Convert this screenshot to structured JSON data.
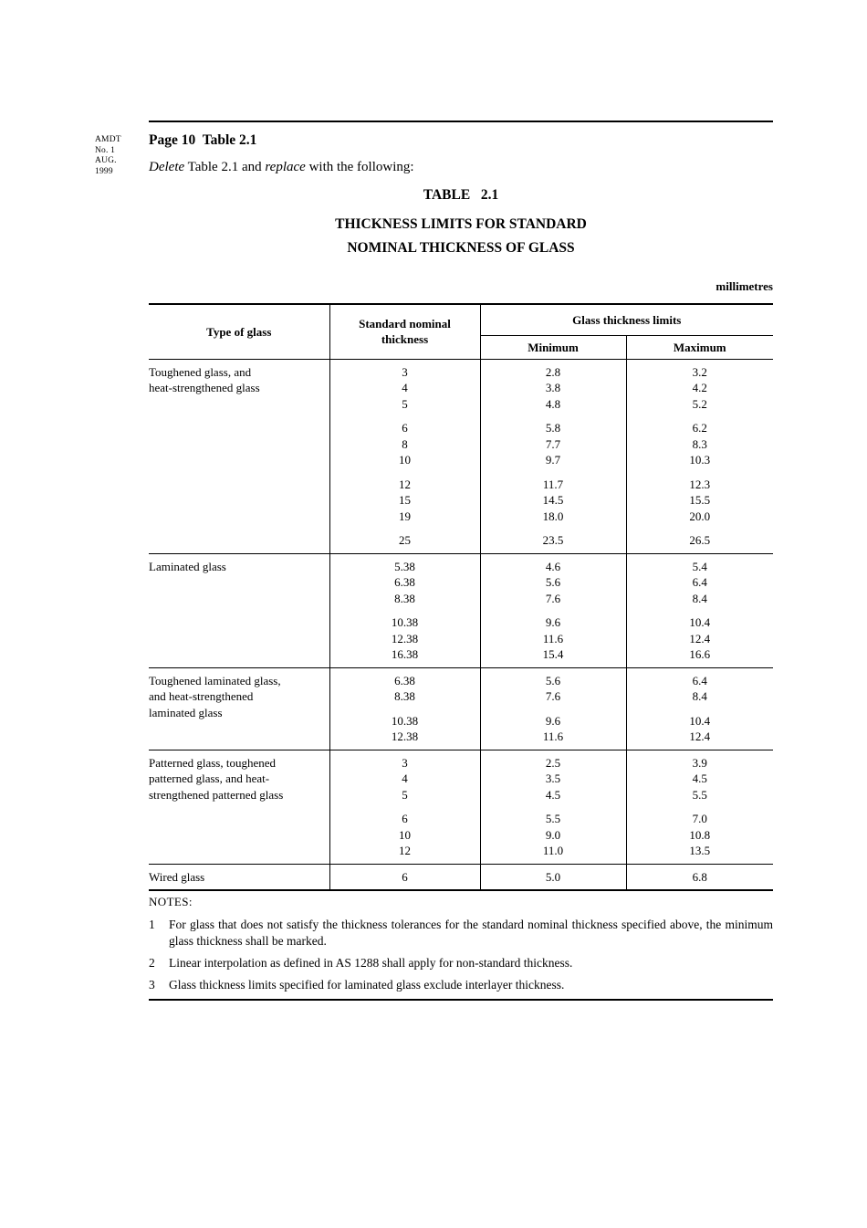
{
  "page": {
    "amdt_lines": [
      "AMDT",
      "No. 1",
      "AUG.",
      "1999"
    ],
    "heading": "Page 10  Table 2.1",
    "instruction": {
      "i1": "Delete",
      "t1": " Table 2.1 and ",
      "i2": "replace",
      "t2": " with the following:"
    },
    "table_title": "TABLE   2.1",
    "table_subtitle1": "THICKNESS LIMITS FOR STANDARD",
    "table_subtitle2": "NOMINAL THICKNESS OF GLASS",
    "units_label": "millimetres"
  },
  "table": {
    "headers": {
      "type": "Type of glass",
      "nominal": "Standard nominal thickness",
      "group": "Glass thickness limits",
      "min": "Minimum",
      "max": "Maximum"
    },
    "sections": [
      {
        "label_lines": [
          "Toughened glass, and",
          "heat-strengthened glass"
        ],
        "groups": [
          [
            [
              "3",
              "2.8",
              "3.2"
            ],
            [
              "4",
              "3.8",
              "4.2"
            ],
            [
              "5",
              "4.8",
              "5.2"
            ]
          ],
          [
            [
              "6",
              "5.8",
              "6.2"
            ],
            [
              "8",
              "7.7",
              "8.3"
            ],
            [
              "10",
              "9.7",
              "10.3"
            ]
          ],
          [
            [
              "12",
              "11.7",
              "12.3"
            ],
            [
              "15",
              "14.5",
              "15.5"
            ],
            [
              "19",
              "18.0",
              "20.0"
            ]
          ],
          [
            [
              "25",
              "23.5",
              "26.5"
            ]
          ]
        ]
      },
      {
        "label_lines": [
          "Laminated glass"
        ],
        "groups": [
          [
            [
              "5.38",
              "4.6",
              "5.4"
            ],
            [
              "6.38",
              "5.6",
              "6.4"
            ],
            [
              "8.38",
              "7.6",
              "8.4"
            ]
          ],
          [
            [
              "10.38",
              "9.6",
              "10.4"
            ],
            [
              "12.38",
              "11.6",
              "12.4"
            ],
            [
              "16.38",
              "15.4",
              "16.6"
            ]
          ]
        ]
      },
      {
        "label_lines": [
          "Toughened laminated glass,",
          "and heat-strengthened",
          "laminated glass"
        ],
        "groups": [
          [
            [
              "6.38",
              "5.6",
              "6.4"
            ],
            [
              "8.38",
              "7.6",
              "8.4"
            ]
          ],
          [
            [
              "10.38",
              "9.6",
              "10.4"
            ],
            [
              "12.38",
              "11.6",
              "12.4"
            ]
          ]
        ]
      },
      {
        "label_lines": [
          "Patterned glass, toughened",
          "patterned glass, and heat-",
          "strengthened patterned glass"
        ],
        "groups": [
          [
            [
              "3",
              "2.5",
              "3.9"
            ],
            [
              "4",
              "3.5",
              "4.5"
            ],
            [
              "5",
              "4.5",
              "5.5"
            ]
          ],
          [
            [
              "6",
              "5.5",
              "7.0"
            ],
            [
              "10",
              "9.0",
              "10.8"
            ],
            [
              "12",
              "11.0",
              "13.5"
            ]
          ]
        ]
      },
      {
        "label_lines": [
          "Wired glass"
        ],
        "groups": [
          [
            [
              "6",
              "5.0",
              "6.8"
            ]
          ]
        ]
      }
    ]
  },
  "notes": {
    "title": "NOTES:",
    "items": [
      {
        "num": "1",
        "text": "For glass that does not satisfy the thickness tolerances for the standard nominal thickness specified above, the minimum glass thickness shall be marked."
      },
      {
        "num": "2",
        "text": "Linear interpolation as defined in AS 1288 shall apply for non-standard thickness."
      },
      {
        "num": "3",
        "text": "Glass thickness limits specified for laminated glass exclude interlayer thickness."
      }
    ]
  }
}
